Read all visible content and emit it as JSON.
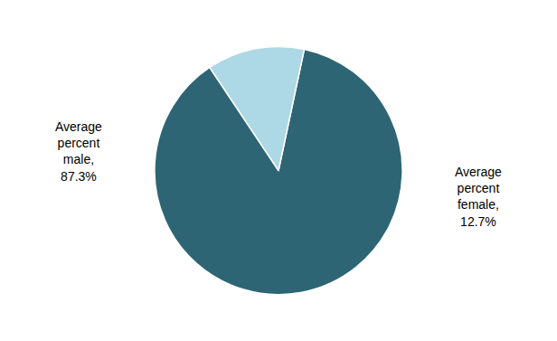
{
  "chart_data": {
    "type": "pie",
    "categories": [
      "Average\npercent\nmale,\n87.3%",
      "Average\npercent\nfemale,\n12.7%"
    ],
    "values": [
      87.3,
      12.7
    ],
    "colors": [
      "#2e6575",
      "#add8e6"
    ]
  }
}
